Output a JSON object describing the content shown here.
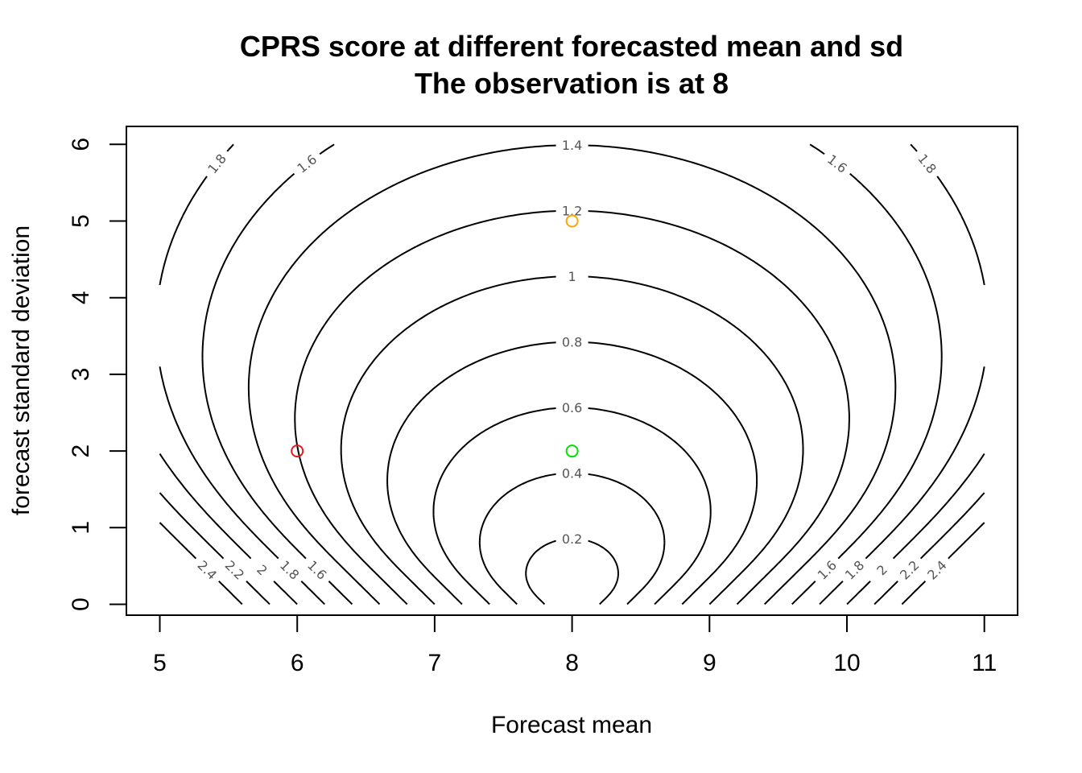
{
  "chart_data": {
    "type": "contour",
    "title": "CPRS score at different forecasted mean and sd",
    "subtitle": "The observation is at 8",
    "xlabel": "Forecast mean",
    "ylabel": "forecast standard deviation",
    "xlim": [
      5,
      11
    ],
    "ylim": [
      0,
      6
    ],
    "xticks": [
      "5",
      "6",
      "7",
      "8",
      "9",
      "10",
      "11"
    ],
    "yticks": [
      "0",
      "1",
      "2",
      "3",
      "4",
      "5",
      "6"
    ],
    "observation": 8,
    "contour_levels": [
      "0.2",
      "0.4",
      "0.6",
      "0.8",
      "1",
      "1.2",
      "1.4",
      "1.6",
      "1.8",
      "2",
      "2.2",
      "2.4"
    ],
    "points": [
      {
        "x": 6,
        "y": 2,
        "color": "#e31a1c"
      },
      {
        "x": 8,
        "y": 2,
        "color": "#00e000"
      },
      {
        "x": 8,
        "y": 5,
        "color": "#ffa500"
      }
    ]
  }
}
